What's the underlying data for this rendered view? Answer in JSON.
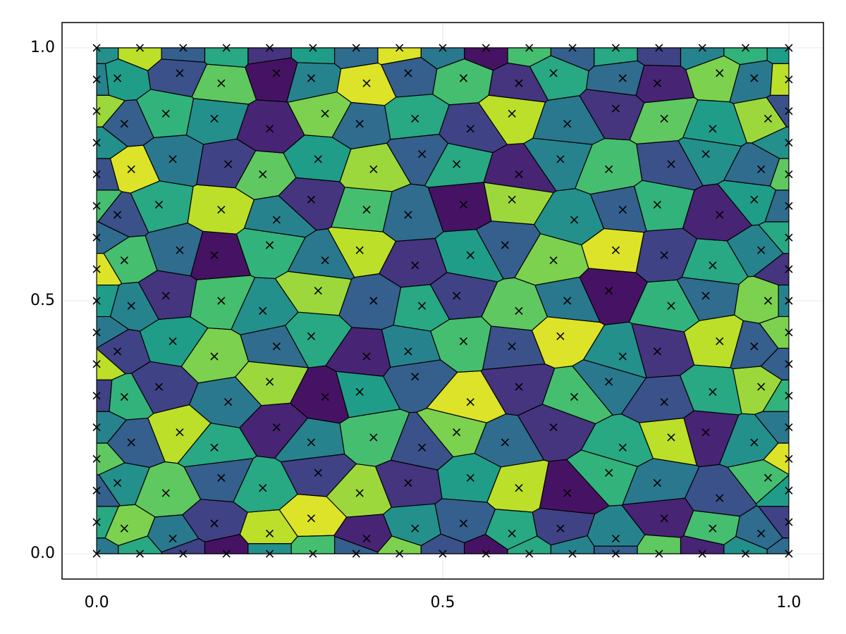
{
  "chart_data": {
    "type": "voronoi",
    "colormap": "viridis",
    "clim": [
      0,
      1
    ],
    "grid": true,
    "xlim": [
      -0.05,
      1.05
    ],
    "ylim": [
      -0.05,
      1.05
    ],
    "xticks": [
      {
        "value": 0,
        "label": "0.0"
      },
      {
        "value": 0.5,
        "label": "0.5"
      },
      {
        "value": 1,
        "label": "1.0"
      }
    ],
    "yticks": [
      {
        "value": 0,
        "label": "0.0"
      },
      {
        "value": 0.5,
        "label": "0.5"
      },
      {
        "value": 1,
        "label": "1.0"
      }
    ],
    "x": [
      0.04,
      0.11,
      0.17,
      0.25,
      0.31,
      0.39,
      0.46,
      0.53,
      0.6,
      0.67,
      0.75,
      0.82,
      0.89,
      0.96,
      0.03,
      0.1,
      0.18,
      0.24,
      0.32,
      0.38,
      0.45,
      0.54,
      0.61,
      0.68,
      0.74,
      0.81,
      0.9,
      0.97,
      0.05,
      0.12,
      0.17,
      0.26,
      0.31,
      0.4,
      0.47,
      0.52,
      0.59,
      0.66,
      0.76,
      0.83,
      0.88,
      0.95,
      0.04,
      0.09,
      0.19,
      0.25,
      0.33,
      0.38,
      0.46,
      0.54,
      0.61,
      0.69,
      0.74,
      0.82,
      0.89,
      0.96,
      0.03,
      0.11,
      0.17,
      0.26,
      0.31,
      0.39,
      0.45,
      0.53,
      0.6,
      0.67,
      0.76,
      0.81,
      0.9,
      0.95,
      0.05,
      0.1,
      0.18,
      0.24,
      0.32,
      0.4,
      0.47,
      0.52,
      0.61,
      0.68,
      0.74,
      0.83,
      0.88,
      0.97,
      0.04,
      0.12,
      0.17,
      0.25,
      0.33,
      0.38,
      0.46,
      0.54,
      0.59,
      0.66,
      0.75,
      0.82,
      0.89,
      0.96,
      0.03,
      0.09,
      0.18,
      0.26,
      0.31,
      0.39,
      0.45,
      0.53,
      0.6,
      0.69,
      0.76,
      0.81,
      0.9,
      0.95,
      0.05,
      0.11,
      0.19,
      0.24,
      0.32,
      0.4,
      0.47,
      0.52,
      0.61,
      0.67,
      0.74,
      0.83,
      0.88,
      0.96,
      0.04,
      0.1,
      0.17,
      0.25,
      0.33,
      0.38,
      0.46,
      0.54,
      0.6,
      0.68,
      0.75,
      0.82,
      0.89,
      0.97,
      0.03,
      0.12,
      0.18,
      0.26,
      0.31,
      0.39,
      0.45,
      0.53,
      0.61,
      0.66,
      0.76,
      0.81,
      0.9,
      0.95,
      0,
      0.0625,
      0.125,
      0.1875,
      0.25,
      0.3125,
      0.375,
      0.4375,
      0.5,
      0.5625,
      0.625,
      0.6875,
      0.75,
      0.8125,
      0.875,
      0.9375,
      1,
      0,
      0.0625,
      0.125,
      0.1875,
      0.25,
      0.3125,
      0.375,
      0.4375,
      0.5,
      0.5625,
      0.625,
      0.6875,
      0.75,
      0.8125,
      0.875,
      0.9375,
      1,
      0,
      0,
      0,
      0,
      0,
      0,
      0,
      0,
      0,
      0,
      0,
      0,
      0,
      0,
      0,
      1,
      1,
      1,
      1,
      1,
      1,
      1,
      1,
      1,
      1,
      1,
      1,
      1,
      1,
      1
    ],
    "y": [
      0.05,
      0.03,
      0.06,
      0.04,
      0.07,
      0.03,
      0.05,
      0.06,
      0.04,
      0.05,
      0.03,
      0.07,
      0.05,
      0.04,
      0.14,
      0.12,
      0.15,
      0.13,
      0.16,
      0.12,
      0.14,
      0.15,
      0.13,
      0.12,
      0.16,
      0.14,
      0.11,
      0.15,
      0.22,
      0.24,
      0.21,
      0.25,
      0.22,
      0.23,
      0.21,
      0.24,
      0.22,
      0.25,
      0.21,
      0.23,
      0.24,
      0.22,
      0.31,
      0.33,
      0.3,
      0.34,
      0.31,
      0.32,
      0.35,
      0.3,
      0.33,
      0.31,
      0.34,
      0.3,
      0.32,
      0.33,
      0.4,
      0.42,
      0.39,
      0.41,
      0.43,
      0.39,
      0.4,
      0.42,
      0.41,
      0.43,
      0.39,
      0.4,
      0.42,
      0.41,
      0.49,
      0.51,
      0.5,
      0.48,
      0.52,
      0.5,
      0.49,
      0.51,
      0.48,
      0.5,
      0.52,
      0.49,
      0.51,
      0.5,
      0.58,
      0.6,
      0.59,
      0.61,
      0.58,
      0.6,
      0.57,
      0.59,
      0.61,
      0.58,
      0.6,
      0.59,
      0.57,
      0.6,
      0.67,
      0.69,
      0.68,
      0.66,
      0.7,
      0.68,
      0.67,
      0.69,
      0.7,
      0.66,
      0.68,
      0.69,
      0.67,
      0.7,
      0.76,
      0.78,
      0.77,
      0.75,
      0.78,
      0.76,
      0.79,
      0.77,
      0.75,
      0.78,
      0.76,
      0.77,
      0.79,
      0.76,
      0.85,
      0.87,
      0.86,
      0.84,
      0.87,
      0.85,
      0.86,
      0.84,
      0.87,
      0.85,
      0.88,
      0.86,
      0.84,
      0.86,
      0.94,
      0.95,
      0.93,
      0.95,
      0.94,
      0.93,
      0.95,
      0.94,
      0.93,
      0.95,
      0.94,
      0.93,
      0.95,
      0.94,
      0,
      0,
      0,
      0,
      0,
      0,
      0,
      0,
      0,
      0,
      0,
      0,
      0,
      0,
      0,
      0,
      0,
      1,
      1,
      1,
      1,
      1,
      1,
      1,
      1,
      1,
      1,
      1,
      1,
      1,
      1,
      1,
      1,
      1,
      0.0625,
      0.125,
      0.1875,
      0.25,
      0.3125,
      0.375,
      0.4375,
      0.5,
      0.5625,
      0.625,
      0.6875,
      0.75,
      0.8125,
      0.875,
      0.9375,
      0.0625,
      0.125,
      0.1875,
      0.25,
      0.3125,
      0.375,
      0.4375,
      0.5,
      0.5625,
      0.625,
      0.6875,
      0.75,
      0.8125,
      0.875,
      0.9375
    ],
    "values": [
      0.8,
      0.4,
      0.2,
      0.9,
      0.95,
      0.1,
      0.5,
      0.3,
      0.6,
      0.2,
      0.45,
      0.1,
      0.7,
      0.35,
      0.5,
      0.75,
      0.3,
      0.6,
      0.2,
      0.85,
      0.15,
      0.55,
      0.9,
      0.05,
      0.65,
      0.4,
      0.25,
      0.7,
      0.3,
      0.9,
      0.6,
      0.1,
      0.45,
      0.7,
      0.25,
      0.8,
      0.35,
      0.15,
      0.6,
      0.9,
      0.1,
      0.5,
      0.65,
      0.2,
      0.4,
      0.85,
      0.05,
      0.55,
      0.3,
      0.95,
      0.15,
      0.7,
      0.4,
      0.25,
      0.6,
      0.85,
      0.2,
      0.55,
      0.8,
      0.35,
      0.6,
      0.1,
      0.45,
      0.7,
      0.25,
      0.95,
      0.5,
      0.15,
      0.9,
      0.3,
      0.45,
      0.15,
      0.7,
      0.5,
      0.85,
      0.3,
      0.6,
      0.2,
      0.75,
      0.4,
      0.05,
      0.65,
      0.35,
      0.8,
      0.7,
      0.35,
      0.05,
      0.65,
      0.4,
      0.9,
      0.15,
      0.55,
      0.3,
      0.8,
      0.95,
      0.2,
      0.6,
      0.45,
      0.25,
      0.6,
      0.9,
      0.45,
      0.15,
      0.7,
      0.35,
      0.05,
      0.85,
      0.5,
      0.3,
      0.65,
      0.1,
      0.55,
      0.95,
      0.4,
      0.2,
      0.75,
      0.55,
      0.85,
      0.3,
      0.6,
      0.1,
      0.45,
      0.7,
      0.25,
      0.5,
      0.35,
      0.3,
      0.65,
      0.5,
      0.1,
      0.8,
      0.35,
      0.6,
      0.2,
      0.9,
      0.4,
      0.15,
      0.75,
      0.55,
      0.85,
      0.55,
      0.25,
      0.75,
      0.05,
      0.45,
      0.95,
      0.3,
      0.7,
      0.15,
      0.6,
      0.35,
      0.1,
      0.8,
      0.4,
      0.4,
      0.6,
      0.2,
      0.05,
      0.5,
      0.7,
      0.3,
      0.8,
      0.25,
      0.05,
      0.6,
      0.45,
      0.3,
      0.75,
      0.1,
      0.5,
      0.35,
      0.5,
      0.9,
      0.3,
      0.6,
      0.15,
      0.55,
      0.35,
      0.95,
      0.4,
      0.05,
      0.7,
      0.3,
      0.6,
      0.2,
      0.45,
      0.65,
      0.55,
      0.6,
      0.3,
      0.75,
      0.45,
      0.2,
      0.9,
      0.4,
      0.55,
      0.95,
      0.35,
      0.7,
      0.25,
      0.5,
      0.85,
      0.45,
      0.2,
      0.55,
      0.95,
      0.4,
      0.65,
      0.3,
      0.8,
      0.45,
      0.15,
      0.6,
      0.35,
      0.75,
      0.5,
      0.25,
      0.9
    ]
  }
}
